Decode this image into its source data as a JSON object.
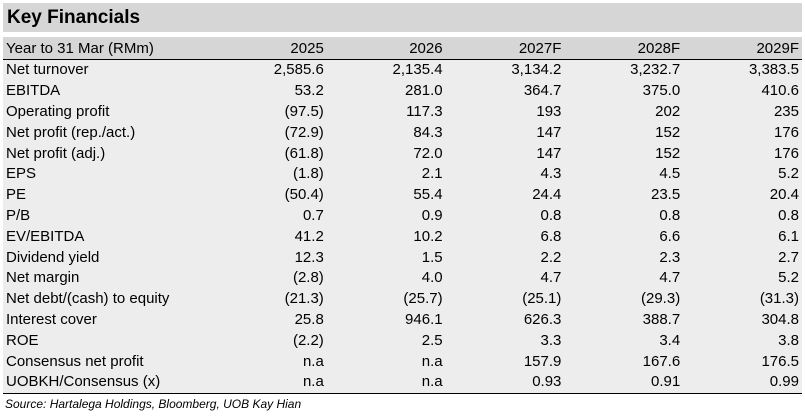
{
  "title": "Key Financials",
  "header": [
    "Year to 31 Mar (RMm)",
    "2025",
    "2026",
    "2027F",
    "2028F",
    "2029F"
  ],
  "rows": [
    {
      "label": "Net turnover",
      "values": [
        "2,585.6",
        "2,135.4",
        "3,134.2",
        "3,232.7",
        "3,383.5"
      ]
    },
    {
      "label": "EBITDA",
      "values": [
        "53.2",
        "281.0",
        "364.7",
        "375.0",
        "410.6"
      ]
    },
    {
      "label": "Operating profit",
      "values": [
        "(97.5)",
        "117.3",
        "193",
        "202",
        "235"
      ]
    },
    {
      "label": "Net profit (rep./act.)",
      "values": [
        "(72.9)",
        "84.3",
        "147",
        "152",
        "176"
      ]
    },
    {
      "label": "Net profit (adj.)",
      "values": [
        "(61.8)",
        "72.0",
        "147",
        "152",
        "176"
      ]
    },
    {
      "label": "EPS",
      "values": [
        "(1.8)",
        "2.1",
        "4.3",
        "4.5",
        "5.2"
      ]
    },
    {
      "label": "PE",
      "values": [
        "(50.4)",
        "55.4",
        "24.4",
        "23.5",
        "20.4"
      ]
    },
    {
      "label": "P/B",
      "values": [
        "0.7",
        "0.9",
        "0.8",
        "0.8",
        "0.8"
      ]
    },
    {
      "label": "EV/EBITDA",
      "values": [
        "41.2",
        "10.2",
        "6.8",
        "6.6",
        "6.1"
      ]
    },
    {
      "label": "Dividend yield",
      "values": [
        "12.3",
        "1.5",
        "2.2",
        "2.3",
        "2.7"
      ]
    },
    {
      "label": "Net margin",
      "values": [
        "(2.8)",
        "4.0",
        "4.7",
        "4.7",
        "5.2"
      ]
    },
    {
      "label": "Net debt/(cash) to equity",
      "values": [
        "(21.3)",
        "(25.7)",
        "(25.1)",
        "(29.3)",
        "(31.3)"
      ]
    },
    {
      "label": "Interest cover",
      "values": [
        "25.8",
        "946.1",
        "626.3",
        "388.7",
        "304.8"
      ]
    },
    {
      "label": "ROE",
      "values": [
        "(2.2)",
        "2.5",
        "3.3",
        "3.4",
        "3.8"
      ]
    },
    {
      "label": "Consensus net profit",
      "values": [
        "n.a",
        "n.a",
        "157.9",
        "167.6",
        "176.5"
      ]
    },
    {
      "label": "UOBKH/Consensus (x)",
      "values": [
        "n.a",
        "n.a",
        "0.93",
        "0.91",
        "0.99"
      ]
    }
  ],
  "source": "Source: Hartalega Holdings, Bloomberg, UOB Kay Hian",
  "colors": {
    "header_bg": "#d6d6d6",
    "row_bg": "#ededed",
    "text": "#000000"
  }
}
